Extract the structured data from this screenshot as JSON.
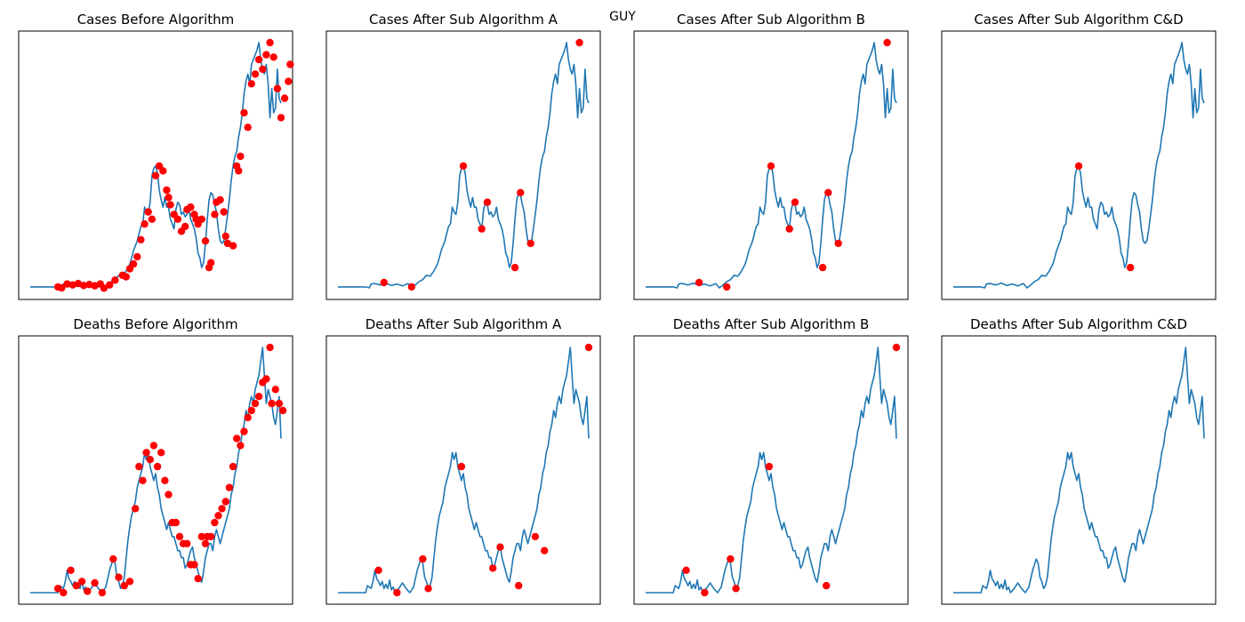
{
  "suptitle": "GUY",
  "colors": {
    "line": "#1f77b4",
    "marker": "#ff0000",
    "frame": "#000000"
  },
  "chart_data": [
    {
      "type": "line",
      "title": "Cases Before Algorithm",
      "xlabel": "",
      "ylabel": "",
      "axes_ticks": "hidden",
      "grid": false,
      "series_ref": "cases",
      "markers": [
        [
          30,
          0.0
        ],
        [
          34,
          -0.4
        ],
        [
          40,
          1.2
        ],
        [
          46,
          0.8
        ],
        [
          52,
          1.4
        ],
        [
          58,
          0.6
        ],
        [
          64,
          1.0
        ],
        [
          70,
          0.5
        ],
        [
          76,
          1.2
        ],
        [
          80,
          -0.5
        ],
        [
          86,
          0.8
        ],
        [
          92,
          2.8
        ],
        [
          100,
          4.8
        ],
        [
          104,
          4.2
        ],
        [
          108,
          7.5
        ],
        [
          112,
          9.5
        ],
        [
          116,
          12.5
        ],
        [
          120,
          19.5
        ],
        [
          124,
          26
        ],
        [
          128,
          31
        ],
        [
          132,
          28
        ],
        [
          136,
          46
        ],
        [
          140,
          50
        ],
        [
          144,
          48
        ],
        [
          148,
          40
        ],
        [
          150,
          37
        ],
        [
          152,
          34
        ],
        [
          156,
          30
        ],
        [
          160,
          28
        ],
        [
          164,
          23
        ],
        [
          168,
          25
        ],
        [
          170,
          32
        ],
        [
          174,
          33
        ],
        [
          178,
          30
        ],
        [
          180,
          28
        ],
        [
          182,
          26
        ],
        [
          186,
          28
        ],
        [
          190,
          19
        ],
        [
          194,
          8
        ],
        [
          196,
          10
        ],
        [
          200,
          30
        ],
        [
          202,
          35
        ],
        [
          206,
          36
        ],
        [
          210,
          31
        ],
        [
          212,
          21
        ],
        [
          214,
          18
        ],
        [
          220,
          17
        ],
        [
          224,
          50
        ],
        [
          226,
          48
        ],
        [
          228,
          54
        ],
        [
          232,
          72
        ],
        [
          236,
          66
        ],
        [
          240,
          84
        ],
        [
          244,
          88
        ],
        [
          248,
          94
        ],
        [
          252,
          90
        ],
        [
          256,
          96
        ],
        [
          260,
          101
        ],
        [
          264,
          95
        ],
        [
          268,
          82
        ],
        [
          272,
          70
        ],
        [
          276,
          78
        ],
        [
          280,
          85
        ],
        [
          282,
          92
        ]
      ]
    },
    {
      "type": "line",
      "title": "Cases After Sub Algorithm A",
      "xlabel": "",
      "ylabel": "",
      "axes_ticks": "hidden",
      "grid": false,
      "series_ref": "cases",
      "markers": [
        [
          50,
          1.8
        ],
        [
          80,
          0.0
        ],
        [
          136,
          50
        ],
        [
          156,
          24
        ],
        [
          162,
          35
        ],
        [
          192,
          8
        ],
        [
          198,
          39
        ],
        [
          209,
          18
        ],
        [
          262,
          101
        ]
      ]
    },
    {
      "type": "line",
      "title": "Cases After Sub Algorithm B",
      "xlabel": "",
      "ylabel": "",
      "axes_ticks": "hidden",
      "grid": false,
      "series_ref": "cases",
      "markers": [
        [
          58,
          1.8
        ],
        [
          88,
          0.0
        ],
        [
          136,
          50
        ],
        [
          156,
          24
        ],
        [
          162,
          35
        ],
        [
          192,
          8
        ],
        [
          198,
          39
        ],
        [
          209,
          18
        ],
        [
          262,
          101
        ]
      ]
    },
    {
      "type": "line",
      "title": "Cases After Sub Algorithm C&D",
      "xlabel": "",
      "ylabel": "",
      "axes_ticks": "hidden",
      "grid": false,
      "series_ref": "cases",
      "markers": [
        [
          136,
          50
        ],
        [
          192,
          8
        ]
      ]
    },
    {
      "type": "line",
      "title": "Deaths Before Algorithm",
      "xlabel": "",
      "ylabel": "",
      "axes_ticks": "hidden",
      "grid": false,
      "series_ref": "deaths",
      "markers": [
        [
          30,
          0.6
        ],
        [
          36,
          0.0
        ],
        [
          44,
          3.2
        ],
        [
          50,
          1.0
        ],
        [
          56,
          1.6
        ],
        [
          62,
          0.2
        ],
        [
          70,
          1.4
        ],
        [
          78,
          0.0
        ],
        [
          90,
          4.8
        ],
        [
          96,
          2.2
        ],
        [
          102,
          1.0
        ],
        [
          108,
          1.6
        ],
        [
          114,
          12
        ],
        [
          118,
          18
        ],
        [
          122,
          16
        ],
        [
          126,
          20
        ],
        [
          130,
          19
        ],
        [
          134,
          21
        ],
        [
          138,
          18
        ],
        [
          142,
          20
        ],
        [
          146,
          16
        ],
        [
          150,
          14
        ],
        [
          154,
          10
        ],
        [
          158,
          10
        ],
        [
          162,
          8
        ],
        [
          166,
          7
        ],
        [
          170,
          7
        ],
        [
          174,
          4
        ],
        [
          178,
          4
        ],
        [
          182,
          2
        ],
        [
          186,
          8
        ],
        [
          190,
          7
        ],
        [
          192,
          8
        ],
        [
          196,
          8
        ],
        [
          200,
          10
        ],
        [
          204,
          11
        ],
        [
          208,
          12
        ],
        [
          212,
          13
        ],
        [
          216,
          15
        ],
        [
          220,
          18
        ],
        [
          224,
          22
        ],
        [
          228,
          21
        ],
        [
          232,
          23
        ],
        [
          236,
          25
        ],
        [
          240,
          26
        ],
        [
          244,
          27
        ],
        [
          248,
          28
        ],
        [
          252,
          30
        ],
        [
          256,
          30.5
        ],
        [
          260,
          35
        ],
        [
          262,
          27
        ],
        [
          266,
          29
        ],
        [
          270,
          27
        ],
        [
          274,
          26
        ]
      ]
    },
    {
      "type": "line",
      "title": "Deaths After Sub Algorithm A",
      "xlabel": "",
      "ylabel": "",
      "axes_ticks": "hidden",
      "grid": false,
      "series_ref": "deaths",
      "markers": [
        [
          44,
          3.2
        ],
        [
          64,
          0.0
        ],
        [
          92,
          4.8
        ],
        [
          98,
          0.6
        ],
        [
          134,
          18
        ],
        [
          168,
          3.5
        ],
        [
          176,
          6.5
        ],
        [
          196,
          1.0
        ],
        [
          214,
          8
        ],
        [
          224,
          6
        ],
        [
          272,
          35
        ]
      ]
    },
    {
      "type": "line",
      "title": "Deaths After Sub Algorithm B",
      "xlabel": "",
      "ylabel": "",
      "axes_ticks": "hidden",
      "grid": false,
      "series_ref": "deaths",
      "markers": [
        [
          44,
          3.2
        ],
        [
          64,
          0.0
        ],
        [
          92,
          4.8
        ],
        [
          98,
          0.6
        ],
        [
          134,
          18
        ],
        [
          196,
          1.0
        ],
        [
          272,
          35
        ]
      ]
    },
    {
      "type": "line",
      "title": "Deaths After Sub Algorithm C&D",
      "xlabel": "",
      "ylabel": "",
      "axes_ticks": "hidden",
      "grid": false,
      "series_ref": "deaths",
      "markers": []
    }
  ],
  "shared_series": {
    "cases": [
      [
        0,
        0
      ],
      [
        20,
        0
      ],
      [
        30,
        0
      ],
      [
        34,
        -0.4
      ],
      [
        36,
        1.2
      ],
      [
        40,
        1.4
      ],
      [
        46,
        0.8
      ],
      [
        52,
        1.6
      ],
      [
        58,
        0.6
      ],
      [
        64,
        1.2
      ],
      [
        70,
        0.4
      ],
      [
        76,
        1.4
      ],
      [
        80,
        -0.4
      ],
      [
        84,
        0.8
      ],
      [
        88,
        2.2
      ],
      [
        92,
        3.0
      ],
      [
        96,
        4.8
      ],
      [
        100,
        4.4
      ],
      [
        104,
        6.5
      ],
      [
        106,
        8.0
      ],
      [
        108,
        9.5
      ],
      [
        110,
        12
      ],
      [
        112,
        15
      ],
      [
        116,
        19
      ],
      [
        118,
        22
      ],
      [
        120,
        25
      ],
      [
        122,
        26
      ],
      [
        124,
        33
      ],
      [
        126,
        31
      ],
      [
        128,
        30
      ],
      [
        130,
        35
      ],
      [
        132,
        46
      ],
      [
        134,
        49
      ],
      [
        136,
        50
      ],
      [
        138,
        47
      ],
      [
        140,
        40
      ],
      [
        142,
        36
      ],
      [
        144,
        33
      ],
      [
        146,
        37
      ],
      [
        148,
        33
      ],
      [
        150,
        33
      ],
      [
        152,
        28
      ],
      [
        154,
        26
      ],
      [
        156,
        24
      ],
      [
        158,
        32
      ],
      [
        160,
        35
      ],
      [
        162,
        34
      ],
      [
        164,
        30
      ],
      [
        166,
        31
      ],
      [
        168,
        29
      ],
      [
        170,
        30
      ],
      [
        172,
        33
      ],
      [
        174,
        28
      ],
      [
        176,
        26
      ],
      [
        178,
        24
      ],
      [
        180,
        20
      ],
      [
        182,
        14
      ],
      [
        184,
        12
      ],
      [
        186,
        8
      ],
      [
        188,
        10
      ],
      [
        190,
        18
      ],
      [
        192,
        28
      ],
      [
        194,
        36
      ],
      [
        196,
        39
      ],
      [
        198,
        38
      ],
      [
        200,
        34
      ],
      [
        202,
        31
      ],
      [
        204,
        24
      ],
      [
        206,
        19
      ],
      [
        208,
        18
      ],
      [
        210,
        19
      ],
      [
        212,
        24
      ],
      [
        214,
        30
      ],
      [
        216,
        36
      ],
      [
        218,
        44
      ],
      [
        220,
        50
      ],
      [
        222,
        54
      ],
      [
        224,
        56
      ],
      [
        226,
        62
      ],
      [
        228,
        66
      ],
      [
        230,
        72
      ],
      [
        232,
        80
      ],
      [
        234,
        85
      ],
      [
        236,
        88
      ],
      [
        238,
        84
      ],
      [
        240,
        92
      ],
      [
        242,
        94
      ],
      [
        244,
        96
      ],
      [
        246,
        98
      ],
      [
        248,
        101
      ],
      [
        250,
        94
      ],
      [
        252,
        90
      ],
      [
        254,
        88
      ],
      [
        256,
        92
      ],
      [
        258,
        84
      ],
      [
        260,
        70
      ],
      [
        262,
        82
      ],
      [
        264,
        72
      ],
      [
        266,
        74
      ],
      [
        268,
        90
      ],
      [
        270,
        78
      ],
      [
        272,
        76
      ]
    ],
    "deaths": [
      [
        0,
        0
      ],
      [
        26,
        0
      ],
      [
        30,
        0
      ],
      [
        32,
        1.0
      ],
      [
        36,
        0.6
      ],
      [
        38,
        1.6
      ],
      [
        40,
        3.2
      ],
      [
        42,
        2.0
      ],
      [
        44,
        1.6
      ],
      [
        46,
        1.0
      ],
      [
        48,
        1.6
      ],
      [
        50,
        0.6
      ],
      [
        52,
        1.2
      ],
      [
        54,
        0.6
      ],
      [
        56,
        1.8
      ],
      [
        58,
        0.4
      ],
      [
        60,
        0.8
      ],
      [
        62,
        0.0
      ],
      [
        66,
        0.6
      ],
      [
        70,
        1.4
      ],
      [
        74,
        0.6
      ],
      [
        78,
        0.0
      ],
      [
        82,
        0.8
      ],
      [
        86,
        3.2
      ],
      [
        90,
        4.8
      ],
      [
        92,
        4.2
      ],
      [
        94,
        2.2
      ],
      [
        96,
        1.6
      ],
      [
        98,
        0.6
      ],
      [
        100,
        1.0
      ],
      [
        102,
        2.2
      ],
      [
        104,
        4.8
      ],
      [
        106,
        7.5
      ],
      [
        108,
        9.5
      ],
      [
        110,
        11
      ],
      [
        112,
        12
      ],
      [
        114,
        13
      ],
      [
        116,
        15
      ],
      [
        118,
        16
      ],
      [
        120,
        17
      ],
      [
        122,
        18
      ],
      [
        124,
        20
      ],
      [
        126,
        19
      ],
      [
        128,
        20
      ],
      [
        130,
        18
      ],
      [
        132,
        17
      ],
      [
        134,
        16
      ],
      [
        136,
        17
      ],
      [
        138,
        15
      ],
      [
        140,
        14
      ],
      [
        142,
        12
      ],
      [
        144,
        11
      ],
      [
        146,
        10
      ],
      [
        148,
        9
      ],
      [
        150,
        10
      ],
      [
        152,
        9
      ],
      [
        154,
        8
      ],
      [
        156,
        8
      ],
      [
        158,
        7
      ],
      [
        160,
        6
      ],
      [
        162,
        6
      ],
      [
        164,
        5
      ],
      [
        166,
        5
      ],
      [
        168,
        3.5
      ],
      [
        170,
        4
      ],
      [
        172,
        5
      ],
      [
        174,
        6
      ],
      [
        176,
        6.5
      ],
      [
        178,
        5
      ],
      [
        180,
        4
      ],
      [
        182,
        3
      ],
      [
        184,
        2
      ],
      [
        186,
        1.5
      ],
      [
        188,
        3
      ],
      [
        190,
        5
      ],
      [
        192,
        6
      ],
      [
        194,
        7
      ],
      [
        196,
        7
      ],
      [
        198,
        6
      ],
      [
        200,
        8
      ],
      [
        202,
        9
      ],
      [
        204,
        8
      ],
      [
        206,
        7
      ],
      [
        208,
        8
      ],
      [
        210,
        9
      ],
      [
        212,
        10
      ],
      [
        214,
        11
      ],
      [
        216,
        12
      ],
      [
        218,
        14
      ],
      [
        220,
        15
      ],
      [
        222,
        17
      ],
      [
        224,
        18
      ],
      [
        226,
        20
      ],
      [
        228,
        21
      ],
      [
        230,
        23
      ],
      [
        232,
        24
      ],
      [
        234,
        26
      ],
      [
        236,
        25
      ],
      [
        238,
        27
      ],
      [
        240,
        28
      ],
      [
        242,
        27
      ],
      [
        244,
        29
      ],
      [
        246,
        30
      ],
      [
        248,
        31
      ],
      [
        250,
        33
      ],
      [
        252,
        35
      ],
      [
        254,
        31
      ],
      [
        256,
        27
      ],
      [
        258,
        29
      ],
      [
        260,
        28
      ],
      [
        262,
        27
      ],
      [
        264,
        25
      ],
      [
        266,
        24
      ],
      [
        268,
        26
      ],
      [
        270,
        28
      ],
      [
        272,
        22
      ]
    ]
  }
}
